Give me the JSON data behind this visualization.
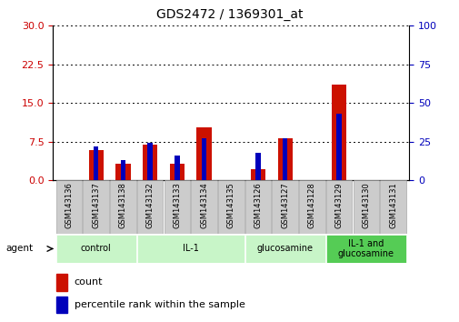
{
  "title": "GDS2472 / 1369301_at",
  "samples": [
    "GSM143136",
    "GSM143137",
    "GSM143138",
    "GSM143132",
    "GSM143133",
    "GSM143134",
    "GSM143135",
    "GSM143126",
    "GSM143127",
    "GSM143128",
    "GSM143129",
    "GSM143130",
    "GSM143131"
  ],
  "count_values": [
    0,
    5.8,
    3.2,
    7.0,
    3.2,
    10.2,
    0,
    2.2,
    8.2,
    0,
    18.5,
    0,
    0
  ],
  "percentile_values": [
    0,
    22,
    13,
    24,
    16,
    27,
    0,
    18,
    27,
    0,
    43,
    0,
    0
  ],
  "groups": [
    {
      "label": "control",
      "start": 0,
      "end": 3,
      "color": "#c8f5c8"
    },
    {
      "label": "IL-1",
      "start": 3,
      "end": 7,
      "color": "#c8f5c8"
    },
    {
      "label": "glucosamine",
      "start": 7,
      "end": 10,
      "color": "#c8f5c8"
    },
    {
      "label": "IL-1 and\nglucosamine",
      "start": 10,
      "end": 13,
      "color": "#55cc55"
    }
  ],
  "ylim_left": [
    0,
    30
  ],
  "ylim_right": [
    0,
    100
  ],
  "yticks_left": [
    0,
    7.5,
    15,
    22.5,
    30
  ],
  "yticks_right": [
    0,
    25,
    50,
    75,
    100
  ],
  "count_color": "#cc1100",
  "percentile_color": "#0000bb",
  "legend_count_label": "count",
  "legend_percentile_label": "percentile rank within the sample",
  "agent_label": "agent"
}
